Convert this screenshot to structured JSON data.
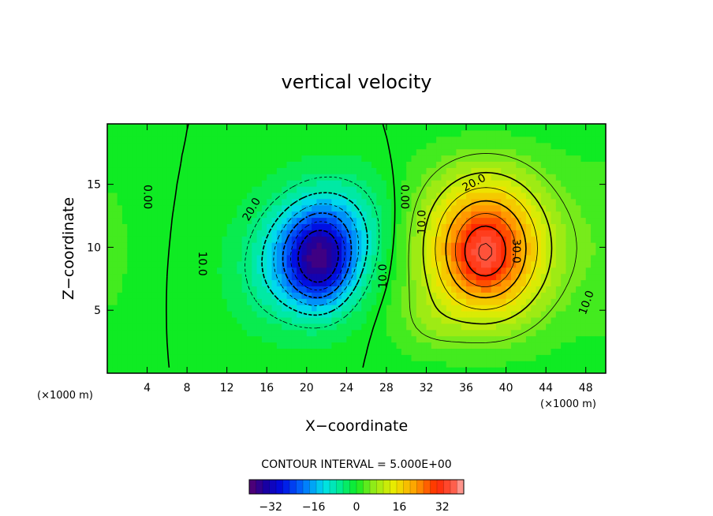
{
  "chart_data": {
    "type": "contour",
    "title": "vertical velocity",
    "xlabel": "X−coordinate",
    "ylabel": "Z−coordinate",
    "x_units": "(×1000 m)",
    "y_units": "(×1000 m)",
    "xlim": [
      0,
      50
    ],
    "ylim": [
      0,
      19.8
    ],
    "x_ticks": [
      4,
      8,
      12,
      16,
      20,
      24,
      28,
      32,
      36,
      40,
      44,
      48
    ],
    "x_tick_labels": [
      "4",
      "8",
      "12",
      "16",
      "20",
      "24",
      "28",
      "32",
      "36",
      "40",
      "44",
      "48"
    ],
    "y_ticks": [
      5,
      10,
      15
    ],
    "y_tick_labels": [
      "5",
      "10",
      "15"
    ],
    "contour_interval": "CONTOUR INTERVAL = 5.000E+00",
    "contour_levels": [
      -30,
      -25,
      -20,
      -15,
      -10,
      -5,
      0,
      5,
      10,
      15,
      20,
      25,
      30,
      35
    ],
    "contour_labels": [
      {
        "text": "0.00",
        "x": 4.0,
        "y": 14.0,
        "angle": 90
      },
      {
        "text": "0.00",
        "x": 29.8,
        "y": 14.0,
        "angle": 90
      },
      {
        "text": "20.0",
        "x": 14.5,
        "y": 13.0,
        "angle": -60
      },
      {
        "text": "10.0",
        "x": 9.5,
        "y": 8.7,
        "angle": 90
      },
      {
        "text": "10.0",
        "x": 27.7,
        "y": 7.7,
        "angle": -90
      },
      {
        "text": "10.0",
        "x": 31.6,
        "y": 12.0,
        "angle": -90
      },
      {
        "text": "20.0",
        "x": 36.8,
        "y": 15.1,
        "angle": -28
      },
      {
        "text": "30.0",
        "x": 41.0,
        "y": 9.7,
        "angle": 90
      },
      {
        "text": "10.0",
        "x": 48.1,
        "y": 5.6,
        "angle": -70
      }
    ],
    "field_extremes": [
      {
        "type": "min",
        "value": -33,
        "x": 21.5,
        "y": 8.5
      },
      {
        "type": "max",
        "value": 36,
        "x": 37.8,
        "y": 9.3
      }
    ],
    "colorbar": {
      "range": [
        -40,
        40
      ],
      "ticks": [
        -32,
        -16,
        0,
        16,
        32
      ],
      "tick_labels": [
        "−32",
        "−16",
        "0",
        "16",
        "32"
      ]
    }
  }
}
